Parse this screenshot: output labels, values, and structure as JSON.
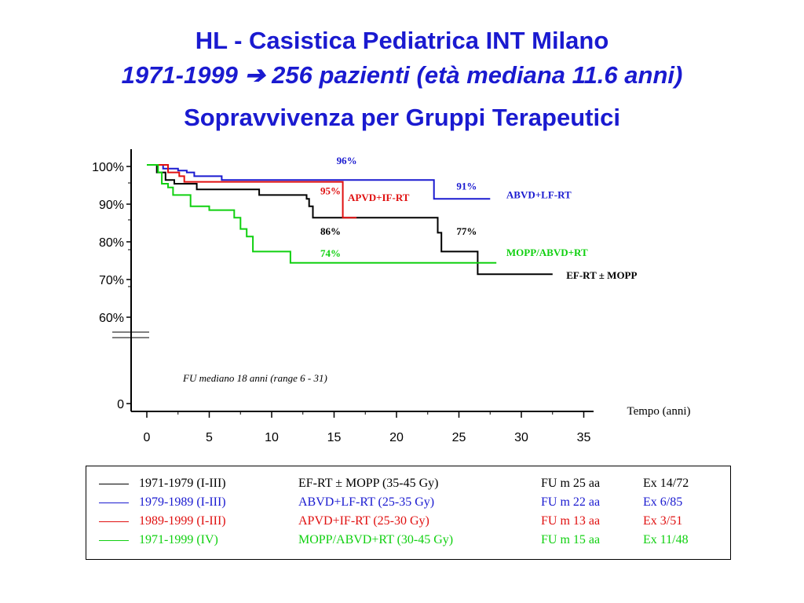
{
  "title": {
    "line1": "HL - Casistica Pediatrica INT  Milano",
    "line2_years": "1971-1999",
    "line2_arrow": "➔",
    "line2_text": "256 pazienti (età mediana 11.6 anni)",
    "line3": "Sopravvivenza per Gruppi Terapeutici"
  },
  "chart_data": {
    "type": "line",
    "step": true,
    "xlabel": "Tempo (anni)",
    "ylabel": "",
    "xlim": [
      0,
      35
    ],
    "x_ticks": [
      "0",
      "5",
      "10",
      "15",
      "20",
      "25",
      "30",
      "35"
    ],
    "y_ticks": [
      "0",
      "60%",
      "70%",
      "80%",
      "90%",
      "100%"
    ],
    "y_axis_break": true,
    "grid": false,
    "annotation": "FU mediano 18 anni (range 6 - 31)",
    "series": [
      {
        "name": "EF-RT ± MOPP",
        "color": "#000000",
        "points": [
          [
            0,
            100
          ],
          [
            0.8,
            100
          ],
          [
            0.8,
            98
          ],
          [
            1.5,
            98
          ],
          [
            1.5,
            96
          ],
          [
            2.2,
            96
          ],
          [
            2.2,
            95
          ],
          [
            4,
            95
          ],
          [
            4,
            93.5
          ],
          [
            9,
            93.5
          ],
          [
            9,
            92
          ],
          [
            12.8,
            92
          ],
          [
            12.8,
            91
          ],
          [
            13,
            91
          ],
          [
            13,
            89
          ],
          [
            13.3,
            89
          ],
          [
            13.3,
            86
          ],
          [
            23.3,
            86
          ],
          [
            23.3,
            82
          ],
          [
            23.6,
            82
          ],
          [
            23.6,
            77
          ],
          [
            26.5,
            77
          ],
          [
            26.5,
            71
          ],
          [
            32.5,
            71
          ]
        ]
      },
      {
        "name": "ABVD+LF-RT",
        "color": "#1a1ad0",
        "points": [
          [
            0,
            100
          ],
          [
            1.3,
            100
          ],
          [
            1.3,
            99
          ],
          [
            2.5,
            99
          ],
          [
            2.5,
            98.5
          ],
          [
            3.2,
            98.5
          ],
          [
            3.2,
            98
          ],
          [
            3.8,
            98
          ],
          [
            3.8,
            97
          ],
          [
            6,
            97
          ],
          [
            6,
            96
          ],
          [
            23,
            96
          ],
          [
            23,
            91
          ],
          [
            27.5,
            91
          ]
        ]
      },
      {
        "name": "APVD+IF-RT",
        "color": "#e01010",
        "points": [
          [
            0,
            100
          ],
          [
            1.7,
            100
          ],
          [
            1.7,
            98
          ],
          [
            2.6,
            98
          ],
          [
            2.6,
            97
          ],
          [
            3,
            97
          ],
          [
            3,
            95.5
          ],
          [
            15.7,
            95.5
          ],
          [
            15.7,
            86
          ],
          [
            16.8,
            86
          ]
        ]
      },
      {
        "name": "MOPP/ABVD+RT",
        "color": "#10d010",
        "points": [
          [
            0,
            100
          ],
          [
            0.9,
            100
          ],
          [
            0.9,
            98
          ],
          [
            1.2,
            98
          ],
          [
            1.2,
            95
          ],
          [
            1.7,
            95
          ],
          [
            1.7,
            94
          ],
          [
            2.1,
            94
          ],
          [
            2.1,
            92
          ],
          [
            3.5,
            92
          ],
          [
            3.5,
            89
          ],
          [
            5,
            89
          ],
          [
            5,
            88
          ],
          [
            7,
            88
          ],
          [
            7,
            86
          ],
          [
            7.5,
            86
          ],
          [
            7.5,
            83
          ],
          [
            8,
            83
          ],
          [
            8,
            81
          ],
          [
            8.5,
            81
          ],
          [
            8.5,
            77
          ],
          [
            11.5,
            77
          ],
          [
            11.5,
            74
          ],
          [
            28,
            74
          ]
        ]
      }
    ],
    "labels": [
      {
        "text": "96%",
        "color": "#1a1ad0",
        "x": 15.2,
        "y": 100.2
      },
      {
        "text": "91%",
        "color": "#1a1ad0",
        "x": 24.8,
        "y": 93.4
      },
      {
        "text": "95%",
        "color": "#e01010",
        "x": 13.9,
        "y": 92.2
      },
      {
        "text": "APVD+IF-RT",
        "color": "#e01010",
        "x": 16.1,
        "y": 90.4
      },
      {
        "text": "ABVD+LF-RT",
        "color": "#1a1ad0",
        "x": 28.8,
        "y": 91.1
      },
      {
        "text": "86%",
        "color": "#000000",
        "x": 13.9,
        "y": 81.5
      },
      {
        "text": "77%",
        "color": "#000000",
        "x": 24.8,
        "y": 81.5
      },
      {
        "text": "74%",
        "color": "#10d010",
        "x": 13.9,
        "y": 75.6
      },
      {
        "text": "MOPP/ABVD+RT",
        "color": "#10d010",
        "x": 28.8,
        "y": 75.8
      },
      {
        "text": "EF-RT ± MOPP",
        "color": "#000000",
        "x": 33.6,
        "y": 69.8
      }
    ]
  },
  "legend": {
    "rows": [
      {
        "period": "1971-1979 (I-III)",
        "treatment": "EF-RT ± MOPP (35-45 Gy)",
        "fu": "FU m 25 aa",
        "ex": "Ex 14/72",
        "color": "#000000"
      },
      {
        "period": "1979-1989 (I-III)",
        "treatment": "ABVD+LF-RT (25-35 Gy)",
        "fu": "FU m 22 aa",
        "ex": "Ex   6/85",
        "color": "#1a1ad0"
      },
      {
        "period": "1989-1999 (I-III)",
        "treatment": "APVD+IF-RT (25-30 Gy)",
        "fu": "FU m 13 aa",
        "ex": "Ex   3/51",
        "color": "#e01010"
      },
      {
        "period": "1971-1999 (IV)",
        "treatment": "MOPP/ABVD+RT (30-45 Gy)",
        "fu": "FU m 15 aa",
        "ex": "Ex 11/48",
        "color": "#10d010"
      }
    ]
  }
}
